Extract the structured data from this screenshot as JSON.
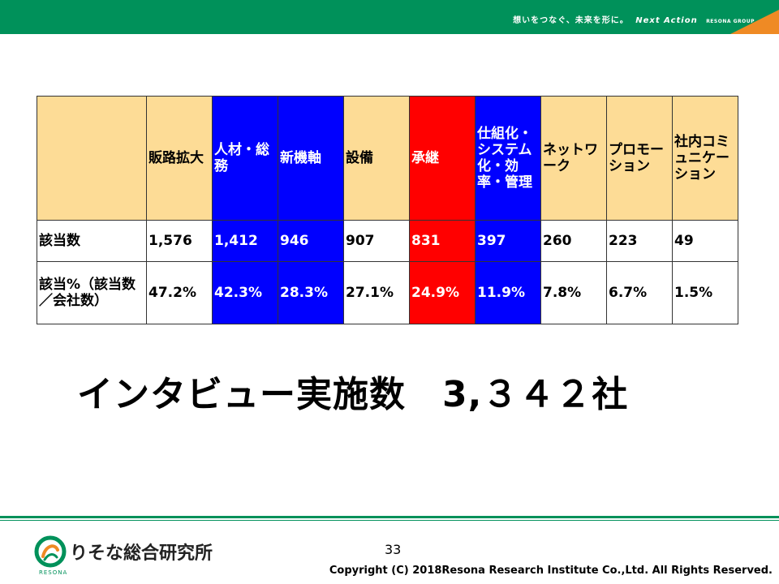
{
  "header": {
    "tagline": "想いをつなぐ、未来を形に。",
    "brand": "Next Action",
    "group": "RESONA GROUP"
  },
  "table": {
    "headers": [
      "",
      "販路拡大",
      "人材・総務",
      "新機軸",
      "設備",
      "承継",
      "仕組化・システム化・効率・管理",
      "ネットワーク",
      "プロモーション",
      "社内コミュニケーション"
    ],
    "header_colors": [
      "#fddc96",
      "#fddc96",
      "#0000ff",
      "#0000ff",
      "#fddc96",
      "#ff0000",
      "#0000ff",
      "#fddc96",
      "#fddc96",
      "#fddc96"
    ],
    "rows": [
      {
        "label": "該当数",
        "cells": [
          "1,576",
          "1,412",
          "946",
          "907",
          "831",
          "397",
          "260",
          "223",
          "49"
        ]
      },
      {
        "label": "該当%（該当数／会社数）",
        "cells": [
          "47.2%",
          "42.3%",
          "28.3%",
          "27.1%",
          "24.9%",
          "11.9%",
          "7.8%",
          "6.7%",
          "1.5%"
        ]
      }
    ]
  },
  "summary": "インタビュー実施数　3,３４２社",
  "footer": {
    "page_number": "33",
    "logo_text": "りそな総合研究所",
    "logo_sub": "RESONA",
    "copyright": "Copyright (C) 2018Resona Research Institute Co.,Ltd. All Rights Reserved."
  }
}
